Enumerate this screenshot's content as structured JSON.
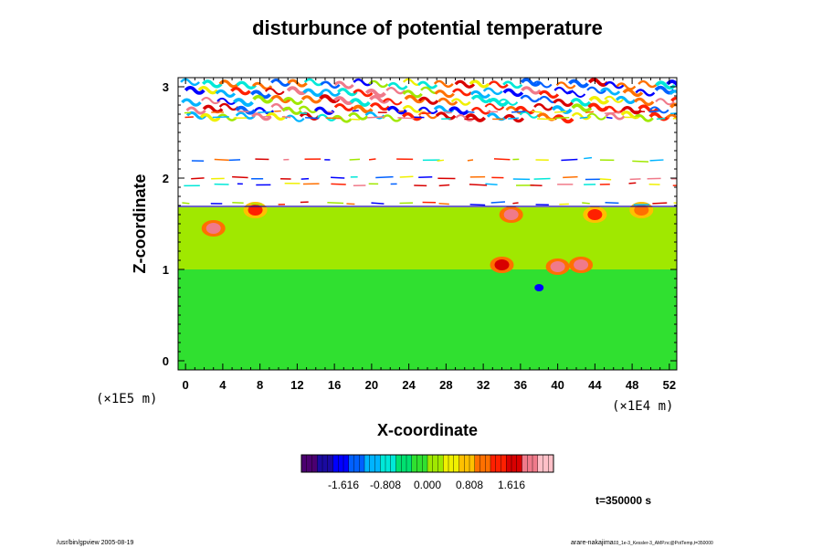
{
  "chart_data": {
    "type": "heatmap",
    "title": "disturbunce of potential temperature",
    "xlabel": "X-coordinate",
    "ylabel": "Z-coordinate",
    "x_scale_note": "(×1E4 m)",
    "y_scale_note": "(×1E5 m)",
    "x_ticks": [
      "0",
      "4",
      "8",
      "12",
      "16",
      "20",
      "24",
      "28",
      "32",
      "36",
      "40",
      "44",
      "48",
      "52"
    ],
    "y_ticks": [
      "0",
      "1",
      "2",
      "3"
    ],
    "xlim": [
      -0.8,
      52.8
    ],
    "ylim": [
      -0.1,
      3.1
    ],
    "grid": false,
    "colorbar": {
      "ticks": [
        "-1.616",
        "-0.808",
        "0.000",
        "0.808",
        "1.616"
      ],
      "tick_values": [
        -1.616,
        -0.808,
        0.0,
        0.808,
        1.616
      ],
      "range": [
        -2.424,
        2.424
      ],
      "colors": [
        "#4b0070",
        "#1a0aa0",
        "#0000ff",
        "#0060ff",
        "#00b4ff",
        "#00e8d8",
        "#00e070",
        "#30e030",
        "#a0e800",
        "#f0f000",
        "#ffc000",
        "#ff7000",
        "#ff2000",
        "#d80000",
        "#f07a8a",
        "#ffc0c8"
      ]
    },
    "field": {
      "lower_layer_z": [
        0,
        1.0
      ],
      "lower_layer_value": -0.2,
      "middle_layer_z": [
        1.0,
        1.68
      ],
      "middle_layer_value": 0.15,
      "upper_region_z": [
        1.7,
        3.1
      ],
      "warm_blobs": [
        {
          "x": 3,
          "z": 1.45,
          "value": 1.9
        },
        {
          "x": 7.5,
          "z": 1.65,
          "value": 1.3
        },
        {
          "x": 35,
          "z": 1.6,
          "value": 1.9
        },
        {
          "x": 40,
          "z": 1.03,
          "value": 1.9
        },
        {
          "x": 42.5,
          "z": 1.05,
          "value": 1.9
        },
        {
          "x": 34,
          "z": 1.05,
          "value": 1.7
        },
        {
          "x": 44,
          "z": 1.6,
          "value": 1.5
        },
        {
          "x": 49,
          "z": 1.65,
          "value": 1.2
        }
      ],
      "cold_spot": {
        "x": 38,
        "z": 0.8,
        "value": -1.6
      }
    },
    "time_label": "t=350000 s"
  },
  "footer": {
    "left": "/usr/bin/gpview 2005-08-19",
    "right_main": "arare-nakajima",
    "right_small": "03_1e-3_Kessler-3_AMP.nc@PotTemp,t=350000"
  }
}
